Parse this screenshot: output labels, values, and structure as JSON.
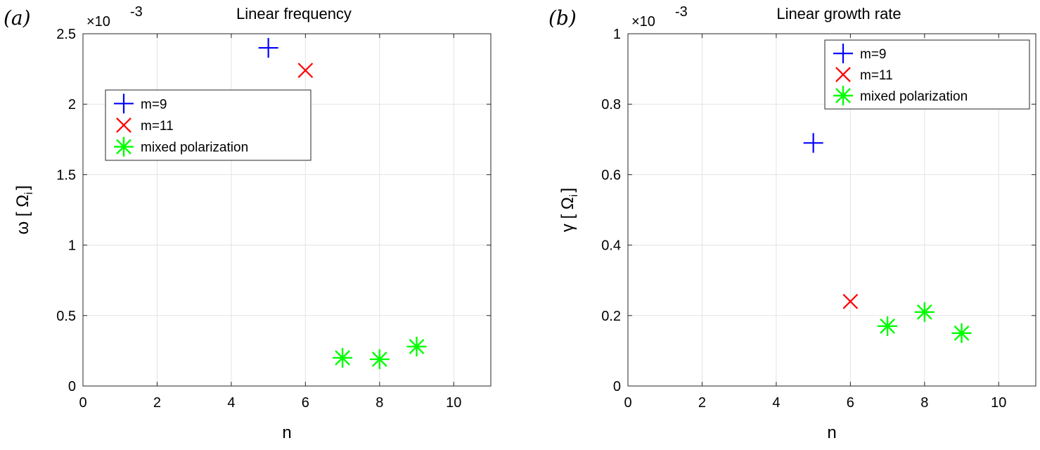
{
  "chart_data": [
    {
      "type": "scatter",
      "panel_label": "(a)",
      "title": "Linear frequency",
      "xlabel": "n",
      "ylabel": "ω [ Ω",
      "ylabel_sub": "i",
      "ylabel_close": "]",
      "y_multiplier": "×10",
      "y_multiplier_exp": "-3",
      "xlim": [
        0,
        11
      ],
      "ylim": [
        0,
        2.5
      ],
      "xticks": [
        "0",
        "2",
        "4",
        "6",
        "8",
        "10"
      ],
      "yticks": [
        "0",
        "0.5",
        "1",
        "1.5",
        "2",
        "2.5"
      ],
      "grid": true,
      "legend_position": "upper-left",
      "series": [
        {
          "name": "m=9",
          "marker": "plus",
          "color": "#0000ff",
          "x": [
            5
          ],
          "y": [
            2.4
          ]
        },
        {
          "name": "m=11",
          "marker": "x",
          "color": "#ff0000",
          "x": [
            6
          ],
          "y": [
            2.24
          ]
        },
        {
          "name": "mixed polarization",
          "marker": "asterisk",
          "color": "#00ff00",
          "x": [
            7,
            8,
            9
          ],
          "y": [
            0.2,
            0.19,
            0.28
          ]
        }
      ]
    },
    {
      "type": "scatter",
      "panel_label": "(b)",
      "title": "Linear growth rate",
      "xlabel": "n",
      "ylabel": "γ [ Ω",
      "ylabel_sub": "i",
      "ylabel_close": "]",
      "y_multiplier": "×10",
      "y_multiplier_exp": "-3",
      "xlim": [
        0,
        11
      ],
      "ylim": [
        0,
        1
      ],
      "xticks": [
        "0",
        "2",
        "4",
        "6",
        "8",
        "10"
      ],
      "yticks": [
        "0",
        "0.2",
        "0.4",
        "0.6",
        "0.8",
        "1"
      ],
      "grid": true,
      "legend_position": "upper-right",
      "series": [
        {
          "name": "m=9",
          "marker": "plus",
          "color": "#0000ff",
          "x": [
            5
          ],
          "y": [
            0.69
          ]
        },
        {
          "name": "m=11",
          "marker": "x",
          "color": "#ff0000",
          "x": [
            6
          ],
          "y": [
            0.24
          ]
        },
        {
          "name": "mixed polarization",
          "marker": "asterisk",
          "color": "#00ff00",
          "x": [
            7,
            8,
            9
          ],
          "y": [
            0.17,
            0.21,
            0.15
          ]
        }
      ]
    }
  ]
}
